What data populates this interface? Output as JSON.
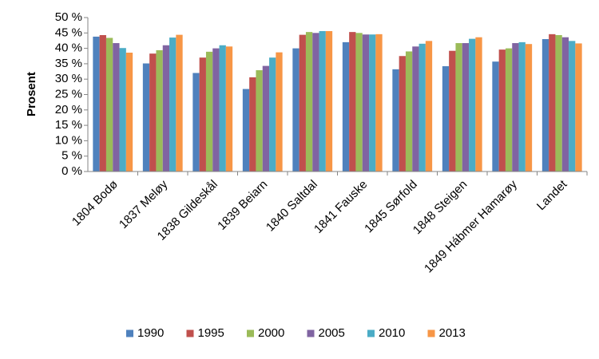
{
  "chart_data": {
    "type": "bar",
    "y_label": "Prosent",
    "categories": [
      "1804 Bodø",
      "1837 Meløy",
      "1838 Gildeskål",
      "1839 Beiarn",
      "1840 Saltdal",
      "1841 Fauske",
      "1845 Sørfold",
      "1848 Steigen",
      "1849 Hábmer Hamarøy",
      "Landet"
    ],
    "series": [
      {
        "name": "1990",
        "color": "#4f81bd",
        "values": [
          43.8,
          35.1,
          32.0,
          26.8,
          40.0,
          42.0,
          33.2,
          34.2,
          35.7,
          43.0
        ]
      },
      {
        "name": "1995",
        "color": "#c0504d",
        "values": [
          44.3,
          38.3,
          37.0,
          30.6,
          44.4,
          45.3,
          37.5,
          39.2,
          39.6,
          44.6
        ]
      },
      {
        "name": "2000",
        "color": "#9bbb59",
        "values": [
          43.4,
          39.4,
          38.9,
          32.9,
          45.3,
          45.0,
          39.0,
          41.7,
          40.0,
          44.3
        ]
      },
      {
        "name": "2005",
        "color": "#8064a2",
        "values": [
          41.7,
          41.0,
          40.0,
          34.3,
          45.0,
          44.5,
          40.6,
          41.7,
          41.7,
          43.6
        ]
      },
      {
        "name": "2010",
        "color": "#4bacc6",
        "values": [
          40.1,
          43.5,
          41.0,
          37.0,
          45.6,
          44.5,
          41.5,
          43.1,
          42.0,
          42.4
        ]
      },
      {
        "name": "2013",
        "color": "#f79646",
        "values": [
          38.6,
          44.4,
          40.6,
          38.7,
          45.6,
          44.6,
          42.4,
          43.6,
          41.4,
          41.6
        ]
      }
    ],
    "ylim": [
      0,
      50
    ],
    "yticks": [
      {
        "value": 0,
        "label": "0 %"
      },
      {
        "value": 5,
        "label": "5 %"
      },
      {
        "value": 10,
        "label": "10 %"
      },
      {
        "value": 15,
        "label": "15 %"
      },
      {
        "value": 20,
        "label": "20 %"
      },
      {
        "value": 25,
        "label": "25 %"
      },
      {
        "value": 30,
        "label": "30 %"
      },
      {
        "value": 35,
        "label": "35 %"
      },
      {
        "value": 40,
        "label": "40 %"
      },
      {
        "value": 45,
        "label": "45 %"
      },
      {
        "value": 50,
        "label": "50 %"
      }
    ],
    "legend": "bottom"
  }
}
